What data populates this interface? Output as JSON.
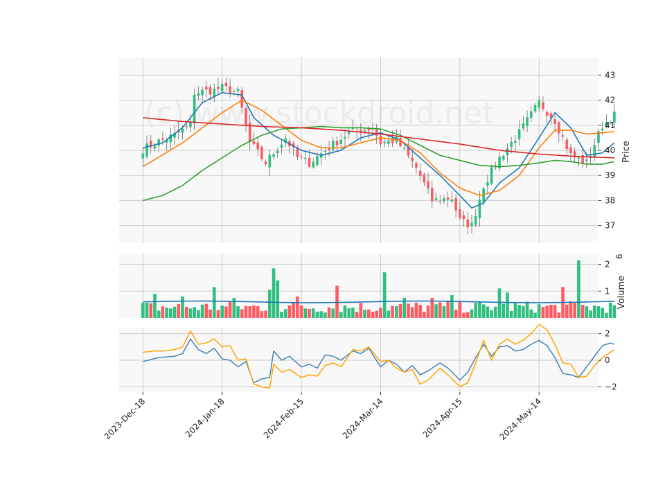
{
  "watermark": "(c) www.stockdroid.net",
  "colors": {
    "up": "#2fbf7f",
    "down": "#ff5a5f",
    "sma_fast": "#1f77b4",
    "sma_mid": "#ff7f0e",
    "sma_slow": "#2ca02c",
    "sma_long": "#d62728",
    "volume_avg": "#1f77b4",
    "osc_a": "#4682b4",
    "osc_b": "#ffa500",
    "panel_bg": "#f8f8f8",
    "grid": "#cccccc"
  },
  "chart_data": [
    {
      "type": "candlestick",
      "panel": "price",
      "ylabel": "Price",
      "ylim": [
        36.3,
        43.7
      ],
      "yticks": [
        37,
        38,
        39,
        40,
        41,
        42,
        43
      ],
      "xlim": [
        -6,
        115
      ],
      "x_tick_indices": [
        0,
        20,
        40,
        60,
        80,
        100
      ],
      "x_tick_labels": [
        "2023-Dec-18",
        "2024-Jan-18",
        "2024-Feb-15",
        "2024-Mar-14",
        "2024-Apr-15",
        "2024-May-14"
      ],
      "grid": true,
      "ohlc_anchors": [
        {
          "i": 0,
          "close": 40.05
        },
        {
          "i": 4,
          "close": 40.35
        },
        {
          "i": 8,
          "close": 40.6
        },
        {
          "i": 12,
          "close": 41.0
        },
        {
          "i": 13,
          "close": 42.3
        },
        {
          "i": 18,
          "close": 42.4
        },
        {
          "i": 20,
          "close": 42.5
        },
        {
          "i": 24,
          "close": 42.3
        },
        {
          "i": 27,
          "close": 40.3
        },
        {
          "i": 31,
          "close": 39.5
        },
        {
          "i": 36,
          "close": 40.5
        },
        {
          "i": 39,
          "close": 39.7
        },
        {
          "i": 42,
          "close": 39.5
        },
        {
          "i": 46,
          "close": 40.0
        },
        {
          "i": 52,
          "close": 40.7
        },
        {
          "i": 58,
          "close": 40.9
        },
        {
          "i": 60,
          "close": 40.3
        },
        {
          "i": 64,
          "close": 40.4
        },
        {
          "i": 69,
          "close": 39.3
        },
        {
          "i": 73,
          "close": 38.0
        },
        {
          "i": 78,
          "close": 38.1
        },
        {
          "i": 80,
          "close": 37.2
        },
        {
          "i": 83,
          "close": 37.0
        },
        {
          "i": 86,
          "close": 38.6
        },
        {
          "i": 90,
          "close": 39.7
        },
        {
          "i": 95,
          "close": 40.7
        },
        {
          "i": 100,
          "close": 41.9
        },
        {
          "i": 104,
          "close": 41.2
        },
        {
          "i": 108,
          "close": 39.8
        },
        {
          "i": 112,
          "close": 39.5
        },
        {
          "i": 116,
          "close": 41.0
        },
        {
          "i": 119,
          "close": 41.4
        }
      ],
      "series": [
        {
          "key": "sma_fast",
          "anchors": [
            [
              0,
              40.1
            ],
            [
              5,
              40.3
            ],
            [
              10,
              40.9
            ],
            [
              15,
              41.9
            ],
            [
              20,
              42.3
            ],
            [
              25,
              42.2
            ],
            [
              28,
              41.3
            ],
            [
              33,
              40.6
            ],
            [
              40,
              40.0
            ],
            [
              45,
              39.8
            ],
            [
              50,
              40.0
            ],
            [
              55,
              40.5
            ],
            [
              60,
              40.7
            ],
            [
              65,
              40.4
            ],
            [
              70,
              39.7
            ],
            [
              75,
              39.0
            ],
            [
              80,
              38.2
            ],
            [
              83,
              37.7
            ],
            [
              86,
              37.9
            ],
            [
              90,
              38.7
            ],
            [
              95,
              39.3
            ],
            [
              100,
              40.5
            ],
            [
              104,
              41.5
            ],
            [
              108,
              40.9
            ],
            [
              112,
              39.8
            ],
            [
              116,
              39.9
            ],
            [
              119,
              40.3
            ]
          ]
        },
        {
          "key": "sma_mid",
          "anchors": [
            [
              0,
              39.35
            ],
            [
              10,
              40.3
            ],
            [
              20,
              41.5
            ],
            [
              25,
              42.0
            ],
            [
              30,
              41.6
            ],
            [
              35,
              41.0
            ],
            [
              40,
              40.4
            ],
            [
              45,
              40.1
            ],
            [
              50,
              40.1
            ],
            [
              55,
              40.3
            ],
            [
              60,
              40.5
            ],
            [
              65,
              40.4
            ],
            [
              70,
              39.9
            ],
            [
              75,
              39.1
            ],
            [
              80,
              38.5
            ],
            [
              85,
              38.2
            ],
            [
              90,
              38.4
            ],
            [
              95,
              39.0
            ],
            [
              100,
              40.1
            ],
            [
              104,
              40.8
            ],
            [
              108,
              40.8
            ],
            [
              112,
              40.65
            ],
            [
              116,
              40.7
            ],
            [
              119,
              40.75
            ]
          ]
        },
        {
          "key": "sma_slow",
          "anchors": [
            [
              0,
              38.0
            ],
            [
              5,
              38.2
            ],
            [
              10,
              38.6
            ],
            [
              15,
              39.2
            ],
            [
              20,
              39.7
            ],
            [
              25,
              40.2
            ],
            [
              30,
              40.6
            ],
            [
              35,
              40.85
            ],
            [
              40,
              40.9
            ],
            [
              45,
              40.95
            ],
            [
              50,
              40.9
            ],
            [
              55,
              40.9
            ],
            [
              60,
              40.85
            ],
            [
              65,
              40.6
            ],
            [
              70,
              40.2
            ],
            [
              75,
              39.8
            ],
            [
              80,
              39.6
            ],
            [
              85,
              39.4
            ],
            [
              90,
              39.35
            ],
            [
              95,
              39.4
            ],
            [
              100,
              39.5
            ],
            [
              104,
              39.6
            ],
            [
              108,
              39.55
            ],
            [
              112,
              39.45
            ],
            [
              116,
              39.45
            ],
            [
              119,
              39.55
            ]
          ]
        },
        {
          "key": "sma_long",
          "anchors": [
            [
              0,
              41.3
            ],
            [
              10,
              41.15
            ],
            [
              20,
              41.05
            ],
            [
              30,
              40.95
            ],
            [
              40,
              40.9
            ],
            [
              50,
              40.8
            ],
            [
              60,
              40.65
            ],
            [
              70,
              40.45
            ],
            [
              80,
              40.25
            ],
            [
              90,
              40.0
            ],
            [
              100,
              39.85
            ],
            [
              110,
              39.75
            ],
            [
              119,
              39.7
            ]
          ]
        }
      ]
    },
    {
      "type": "bar",
      "panel": "volume",
      "ylabel": "Volume",
      "yexponent": "6",
      "ylim": [
        0,
        2.4
      ],
      "yticks": [
        1,
        2
      ],
      "spikes": [
        {
          "i": 3,
          "value": 0.9
        },
        {
          "i": 10,
          "value": 0.8
        },
        {
          "i": 18,
          "value": 1.15
        },
        {
          "i": 23,
          "value": 0.75
        },
        {
          "i": 32,
          "value": 1.05
        },
        {
          "i": 33,
          "value": 1.85
        },
        {
          "i": 34,
          "value": 1.4
        },
        {
          "i": 39,
          "value": 0.8
        },
        {
          "i": 49,
          "value": 1.2
        },
        {
          "i": 61,
          "value": 1.7
        },
        {
          "i": 66,
          "value": 0.75
        },
        {
          "i": 73,
          "value": 0.75
        },
        {
          "i": 78,
          "value": 0.85
        },
        {
          "i": 90,
          "value": 1.1
        },
        {
          "i": 92,
          "value": 0.95
        },
        {
          "i": 106,
          "value": 1.15
        },
        {
          "i": 110,
          "value": 2.15
        }
      ],
      "average_line_value": 0.6
    },
    {
      "type": "line",
      "panel": "oscillator",
      "ylim": [
        -2.4,
        2.4
      ],
      "yticks": [
        -2,
        0,
        2
      ],
      "series": [
        {
          "key": "osc_a",
          "anchors": [
            [
              0,
              -0.1
            ],
            [
              4,
              0.2
            ],
            [
              8,
              0.3
            ],
            [
              10,
              0.5
            ],
            [
              12,
              1.6
            ],
            [
              14,
              0.8
            ],
            [
              16,
              0.5
            ],
            [
              18,
              0.9
            ],
            [
              20,
              0.1
            ],
            [
              22,
              0.0
            ],
            [
              24,
              -0.5
            ],
            [
              26,
              -0.1
            ],
            [
              28,
              -1.7
            ],
            [
              30,
              -1.4
            ],
            [
              32,
              -1.3
            ],
            [
              33,
              0.7
            ],
            [
              35,
              0.0
            ],
            [
              37,
              0.3
            ],
            [
              40,
              -0.5
            ],
            [
              42,
              -0.3
            ],
            [
              44,
              -0.6
            ],
            [
              46,
              0.4
            ],
            [
              48,
              0.3
            ],
            [
              50,
              0.0
            ],
            [
              53,
              0.7
            ],
            [
              55,
              0.5
            ],
            [
              57,
              0.9
            ],
            [
              60,
              -0.5
            ],
            [
              62,
              0.0
            ],
            [
              64,
              -0.3
            ],
            [
              66,
              -0.9
            ],
            [
              68,
              -0.4
            ],
            [
              70,
              -1.1
            ],
            [
              72,
              -0.8
            ],
            [
              75,
              -0.2
            ],
            [
              77,
              -0.6
            ],
            [
              80,
              -1.5
            ],
            [
              82,
              -0.9
            ],
            [
              84,
              0.2
            ],
            [
              86,
              1.2
            ],
            [
              88,
              0.3
            ],
            [
              90,
              1.0
            ],
            [
              92,
              1.1
            ],
            [
              94,
              0.7
            ],
            [
              96,
              0.8
            ],
            [
              98,
              1.2
            ],
            [
              100,
              1.5
            ],
            [
              102,
              1.1
            ],
            [
              104,
              0.2
            ],
            [
              106,
              -1.0
            ],
            [
              108,
              -1.1
            ],
            [
              110,
              -1.3
            ],
            [
              112,
              -0.5
            ],
            [
              114,
              0.3
            ],
            [
              116,
              1.1
            ],
            [
              118,
              1.3
            ],
            [
              119,
              1.2
            ]
          ]
        },
        {
          "key": "osc_b",
          "anchors": [
            [
              0,
              0.6
            ],
            [
              3,
              0.7
            ],
            [
              5,
              0.7
            ],
            [
              8,
              0.8
            ],
            [
              10,
              1.0
            ],
            [
              12,
              2.2
            ],
            [
              14,
              1.2
            ],
            [
              16,
              1.3
            ],
            [
              18,
              1.6
            ],
            [
              20,
              1.0
            ],
            [
              22,
              1.1
            ],
            [
              24,
              0.0
            ],
            [
              26,
              0.1
            ],
            [
              28,
              -1.8
            ],
            [
              30,
              -2.0
            ],
            [
              32,
              -2.1
            ],
            [
              33,
              -0.3
            ],
            [
              35,
              -0.9
            ],
            [
              37,
              -0.7
            ],
            [
              40,
              -1.3
            ],
            [
              42,
              -1.1
            ],
            [
              44,
              -1.2
            ],
            [
              46,
              -0.4
            ],
            [
              48,
              -0.2
            ],
            [
              50,
              -0.5
            ],
            [
              53,
              0.8
            ],
            [
              55,
              0.7
            ],
            [
              57,
              1.0
            ],
            [
              60,
              -0.1
            ],
            [
              62,
              0.0
            ],
            [
              64,
              -0.6
            ],
            [
              66,
              -0.9
            ],
            [
              68,
              -0.7
            ],
            [
              70,
              -1.8
            ],
            [
              72,
              -1.5
            ],
            [
              75,
              -0.6
            ],
            [
              77,
              -1.1
            ],
            [
              80,
              -2.0
            ],
            [
              82,
              -1.7
            ],
            [
              84,
              -0.2
            ],
            [
              86,
              1.5
            ],
            [
              88,
              0.0
            ],
            [
              90,
              1.2
            ],
            [
              92,
              1.6
            ],
            [
              94,
              1.2
            ],
            [
              96,
              1.5
            ],
            [
              98,
              2.0
            ],
            [
              100,
              2.7
            ],
            [
              102,
              2.3
            ],
            [
              104,
              1.2
            ],
            [
              106,
              -0.2
            ],
            [
              108,
              -0.3
            ],
            [
              110,
              -1.3
            ],
            [
              112,
              -1.2
            ],
            [
              114,
              -0.4
            ],
            [
              116,
              0.2
            ],
            [
              118,
              0.6
            ],
            [
              119,
              0.8
            ]
          ]
        }
      ]
    }
  ]
}
